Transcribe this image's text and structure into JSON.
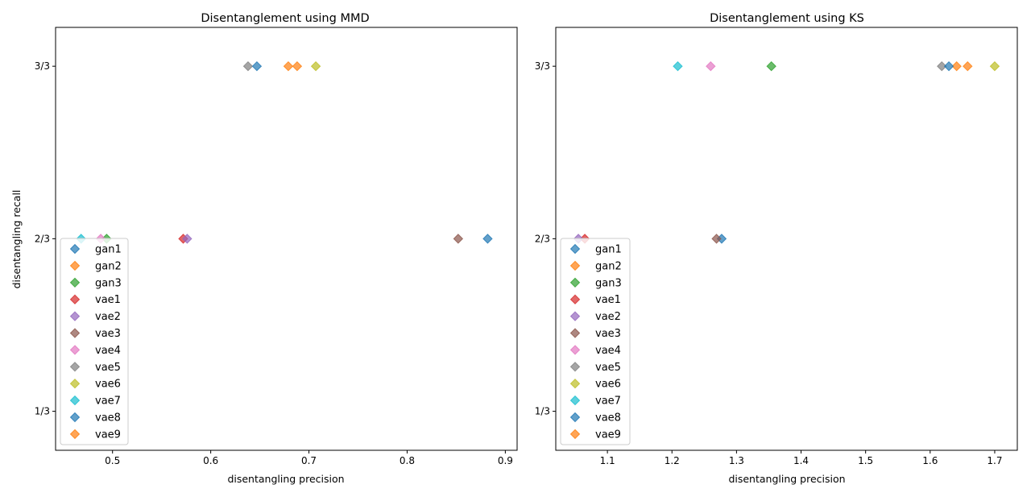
{
  "series_names": [
    "gan1",
    "gan2",
    "gan3",
    "vae1",
    "vae2",
    "vae3",
    "vae4",
    "vae5",
    "vae6",
    "vae7",
    "vae8",
    "vae9"
  ],
  "series_colors": [
    "#1f77b4",
    "#ff7f0e",
    "#2ca02c",
    "#d62728",
    "#9467bd",
    "#8c564b",
    "#e377c2",
    "#7f7f7f",
    "#bcbd22",
    "#17becf",
    "#1f77b4",
    "#ff7f0e"
  ],
  "marker": "diamond",
  "chart_data": [
    {
      "type": "scatter",
      "title": "Disentanglement using MMD",
      "xlabel": "disentangling precision",
      "ylabel": "disentangling recall",
      "xlim": [
        0.442,
        0.912
      ],
      "ylim": [
        0.258,
        1.075
      ],
      "xticks": [
        0.5,
        0.6,
        0.7,
        0.8,
        0.9
      ],
      "xtick_labels": [
        "0.5",
        "0.6",
        "0.7",
        "0.8",
        "0.9"
      ],
      "yticks": [
        0.3333,
        0.6667,
        1.0
      ],
      "ytick_labels": [
        "1/3",
        "2/3",
        "3/3"
      ],
      "legend_position": "lower-left",
      "series": [
        {
          "name": "gan1",
          "x": 0.882,
          "y": 0.6667
        },
        {
          "name": "gan2",
          "x": 0.679,
          "y": 1.0
        },
        {
          "name": "gan3",
          "x": 0.494,
          "y": 0.6667
        },
        {
          "name": "vae1",
          "x": 0.572,
          "y": 0.6667
        },
        {
          "name": "vae2",
          "x": 0.576,
          "y": 0.6667
        },
        {
          "name": "vae3",
          "x": 0.852,
          "y": 0.6667
        },
        {
          "name": "vae4",
          "x": 0.488,
          "y": 0.6667
        },
        {
          "name": "vae5",
          "x": 0.638,
          "y": 1.0
        },
        {
          "name": "vae6",
          "x": 0.707,
          "y": 1.0
        },
        {
          "name": "vae7",
          "x": 0.468,
          "y": 0.6667
        },
        {
          "name": "vae8",
          "x": 0.647,
          "y": 1.0
        },
        {
          "name": "vae9",
          "x": 0.688,
          "y": 1.0
        }
      ]
    },
    {
      "type": "scatter",
      "title": "Disentanglement using KS",
      "xlabel": "disentangling precision",
      "ylabel": "",
      "xlim": [
        1.02,
        1.735
      ],
      "ylim": [
        0.258,
        1.075
      ],
      "xticks": [
        1.1,
        1.2,
        1.3,
        1.4,
        1.5,
        1.6,
        1.7
      ],
      "xtick_labels": [
        "1.1",
        "1.2",
        "1.3",
        "1.4",
        "1.5",
        "1.6",
        "1.7"
      ],
      "yticks": [
        0.3333,
        0.6667,
        1.0
      ],
      "ytick_labels": [
        "1/3",
        "2/3",
        "3/3"
      ],
      "legend_position": "lower-left",
      "series": [
        {
          "name": "gan1",
          "x": 1.277,
          "y": 0.6667
        },
        {
          "name": "gan2",
          "x": 1.641,
          "y": 1.0
        },
        {
          "name": "gan3",
          "x": 1.354,
          "y": 1.0
        },
        {
          "name": "vae1",
          "x": 1.065,
          "y": 0.6667
        },
        {
          "name": "vae2",
          "x": 1.055,
          "y": 0.6667
        },
        {
          "name": "vae3",
          "x": 1.269,
          "y": 0.6667
        },
        {
          "name": "vae4",
          "x": 1.26,
          "y": 1.0
        },
        {
          "name": "vae5",
          "x": 1.618,
          "y": 1.0
        },
        {
          "name": "vae6",
          "x": 1.7,
          "y": 1.0
        },
        {
          "name": "vae7",
          "x": 1.209,
          "y": 1.0
        },
        {
          "name": "vae8",
          "x": 1.629,
          "y": 1.0
        },
        {
          "name": "vae9",
          "x": 1.658,
          "y": 1.0
        }
      ]
    }
  ]
}
